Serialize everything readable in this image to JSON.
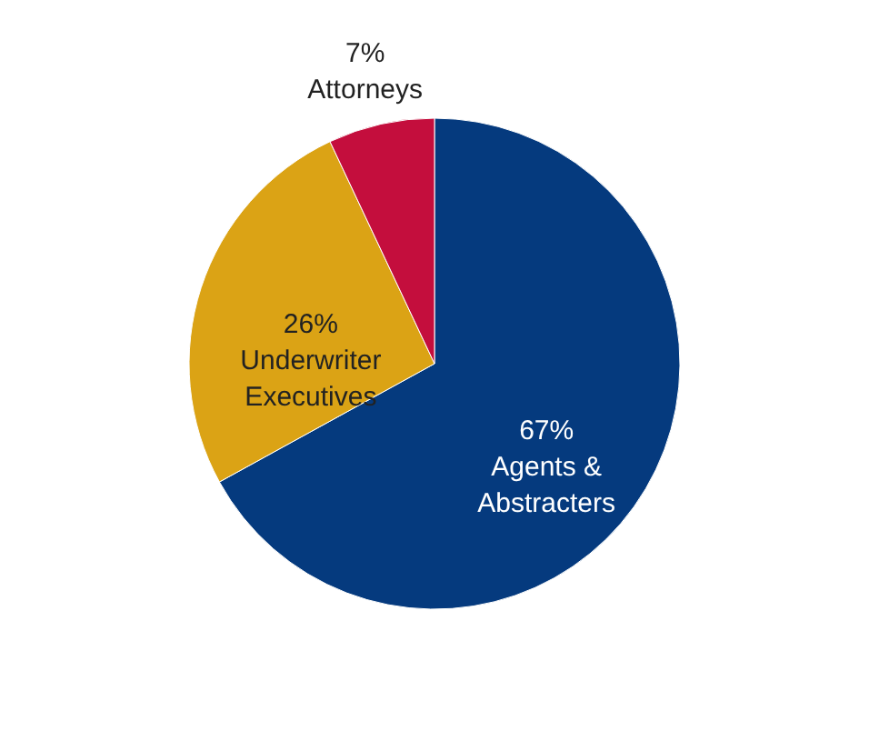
{
  "chart_data": {
    "type": "pie",
    "categories": [
      "Agents & Abstracters",
      "Underwriter Executives",
      "Attorneys"
    ],
    "values": [
      67,
      26,
      7
    ],
    "colors": [
      "#053a7e",
      "#dba315",
      "#c40e3d"
    ],
    "value_labels": [
      "67%",
      "26%",
      "7%"
    ]
  }
}
